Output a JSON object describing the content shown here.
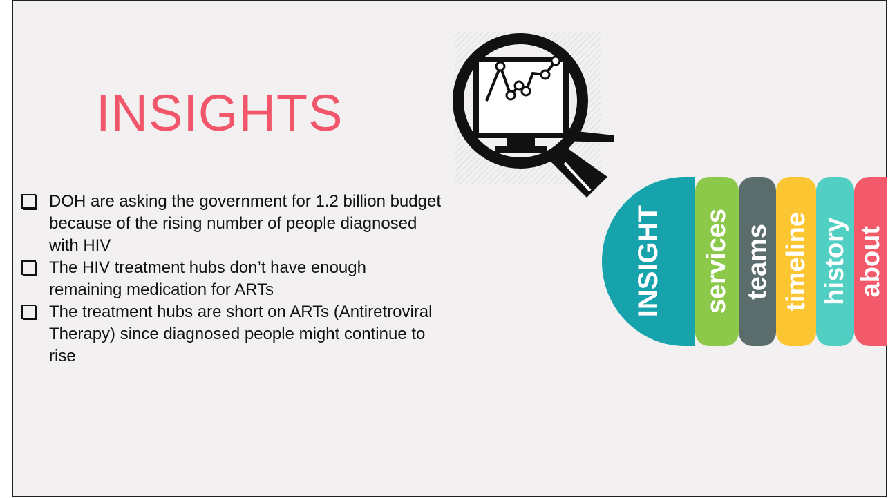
{
  "header": {
    "title": "INSIGHTS"
  },
  "bullets": [
    "DOH are asking the government for 1.2 billion budget because of the rising number of people diagnosed with HIV",
    "The HIV treatment hubs don’t have enough remaining medication for ARTs",
    "The treatment hubs are short on ARTs (Antiretroviral Therapy) since diagnosed people might continue to rise"
  ],
  "tabs": [
    {
      "label": "INSIGHT",
      "color": "#16a3ab"
    },
    {
      "label": "services",
      "color": "#8cc94a"
    },
    {
      "label": "teams",
      "color": "#5b6c6c"
    },
    {
      "label": "timeline",
      "color": "#fbc632"
    },
    {
      "label": "history",
      "color": "#52cfc3"
    },
    {
      "label": "about",
      "color": "#f25a6b"
    }
  ]
}
